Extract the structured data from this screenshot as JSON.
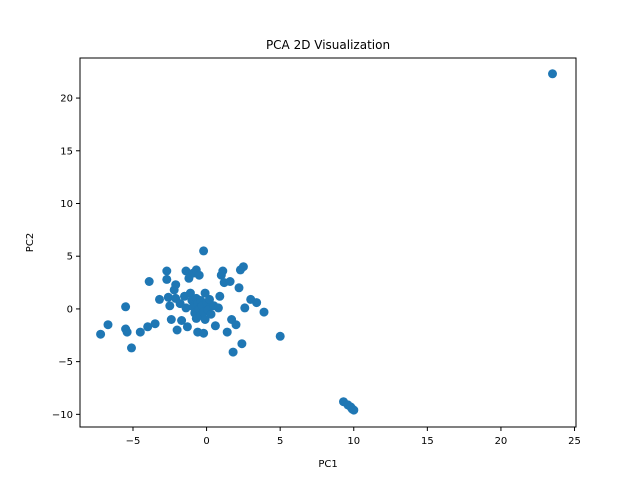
{
  "chart_data": {
    "type": "scatter",
    "title": "PCA 2D Visualization",
    "xlabel": "PC1",
    "ylabel": "PC2",
    "xlim": [
      -8.6,
      25.1
    ],
    "ylim": [
      -11.2,
      23.8
    ],
    "xticks": [
      -5,
      0,
      5,
      10,
      15,
      20,
      25
    ],
    "yticks": [
      -10,
      -5,
      0,
      5,
      10,
      15,
      20
    ],
    "grid": false,
    "color": "#1f77b4",
    "series": [
      {
        "points": [
          [
            23.5,
            22.3
          ],
          [
            9.3,
            -8.8
          ],
          [
            9.6,
            -9.1
          ],
          [
            9.8,
            -9.3
          ],
          [
            9.9,
            -9.5
          ],
          [
            10.0,
            -9.6
          ],
          [
            -7.2,
            -2.4
          ],
          [
            -6.7,
            -1.5
          ],
          [
            -5.5,
            0.2
          ],
          [
            -5.5,
            -1.9
          ],
          [
            -5.4,
            -2.2
          ],
          [
            -5.1,
            -3.7
          ],
          [
            -4.5,
            -2.2
          ],
          [
            -4.0,
            -1.7
          ],
          [
            -3.9,
            2.6
          ],
          [
            -3.5,
            -1.4
          ],
          [
            -3.2,
            0.9
          ],
          [
            -2.7,
            3.6
          ],
          [
            -2.7,
            2.8
          ],
          [
            -2.6,
            1.1
          ],
          [
            -2.5,
            0.3
          ],
          [
            -2.4,
            -1.0
          ],
          [
            -2.2,
            1.8
          ],
          [
            -2.1,
            2.3
          ],
          [
            -2.1,
            1.0
          ],
          [
            -2.0,
            -2.0
          ],
          [
            -1.8,
            0.5
          ],
          [
            -1.7,
            -1.1
          ],
          [
            -1.5,
            1.2
          ],
          [
            -1.4,
            3.6
          ],
          [
            -1.4,
            0.1
          ],
          [
            -1.3,
            -1.7
          ],
          [
            -1.2,
            2.9
          ],
          [
            -1.1,
            1.5
          ],
          [
            -1.0,
            0.8
          ],
          [
            -0.9,
            3.4
          ],
          [
            -0.9,
            0.2
          ],
          [
            -0.8,
            -0.4
          ],
          [
            -0.7,
            3.7
          ],
          [
            -0.7,
            1.0
          ],
          [
            -0.7,
            -0.9
          ],
          [
            -0.6,
            0.5
          ],
          [
            -0.6,
            -2.2
          ],
          [
            -0.5,
            3.2
          ],
          [
            -0.5,
            0.0
          ],
          [
            -0.4,
            0.8
          ],
          [
            -0.4,
            -0.6
          ],
          [
            -0.3,
            0.3
          ],
          [
            -0.2,
            5.5
          ],
          [
            -0.2,
            -0.3
          ],
          [
            -0.2,
            -2.3
          ],
          [
            -0.1,
            1.5
          ],
          [
            -0.1,
            -1.0
          ],
          [
            0.0,
            0.6
          ],
          [
            0.1,
            -0.1
          ],
          [
            0.2,
            0.9
          ],
          [
            0.3,
            -0.5
          ],
          [
            0.5,
            0.3
          ],
          [
            0.6,
            -1.6
          ],
          [
            0.8,
            0.1
          ],
          [
            0.9,
            1.2
          ],
          [
            1.0,
            3.2
          ],
          [
            1.1,
            3.6
          ],
          [
            1.2,
            2.5
          ],
          [
            1.4,
            -2.2
          ],
          [
            1.6,
            2.6
          ],
          [
            1.7,
            -1.0
          ],
          [
            1.8,
            -4.1
          ],
          [
            2.0,
            -1.5
          ],
          [
            2.2,
            2.0
          ],
          [
            2.3,
            3.7
          ],
          [
            2.4,
            -3.3
          ],
          [
            2.5,
            4.0
          ],
          [
            2.6,
            0.1
          ],
          [
            3.0,
            0.9
          ],
          [
            3.4,
            0.6
          ],
          [
            3.9,
            -0.3
          ],
          [
            5.0,
            -2.6
          ]
        ]
      }
    ]
  }
}
